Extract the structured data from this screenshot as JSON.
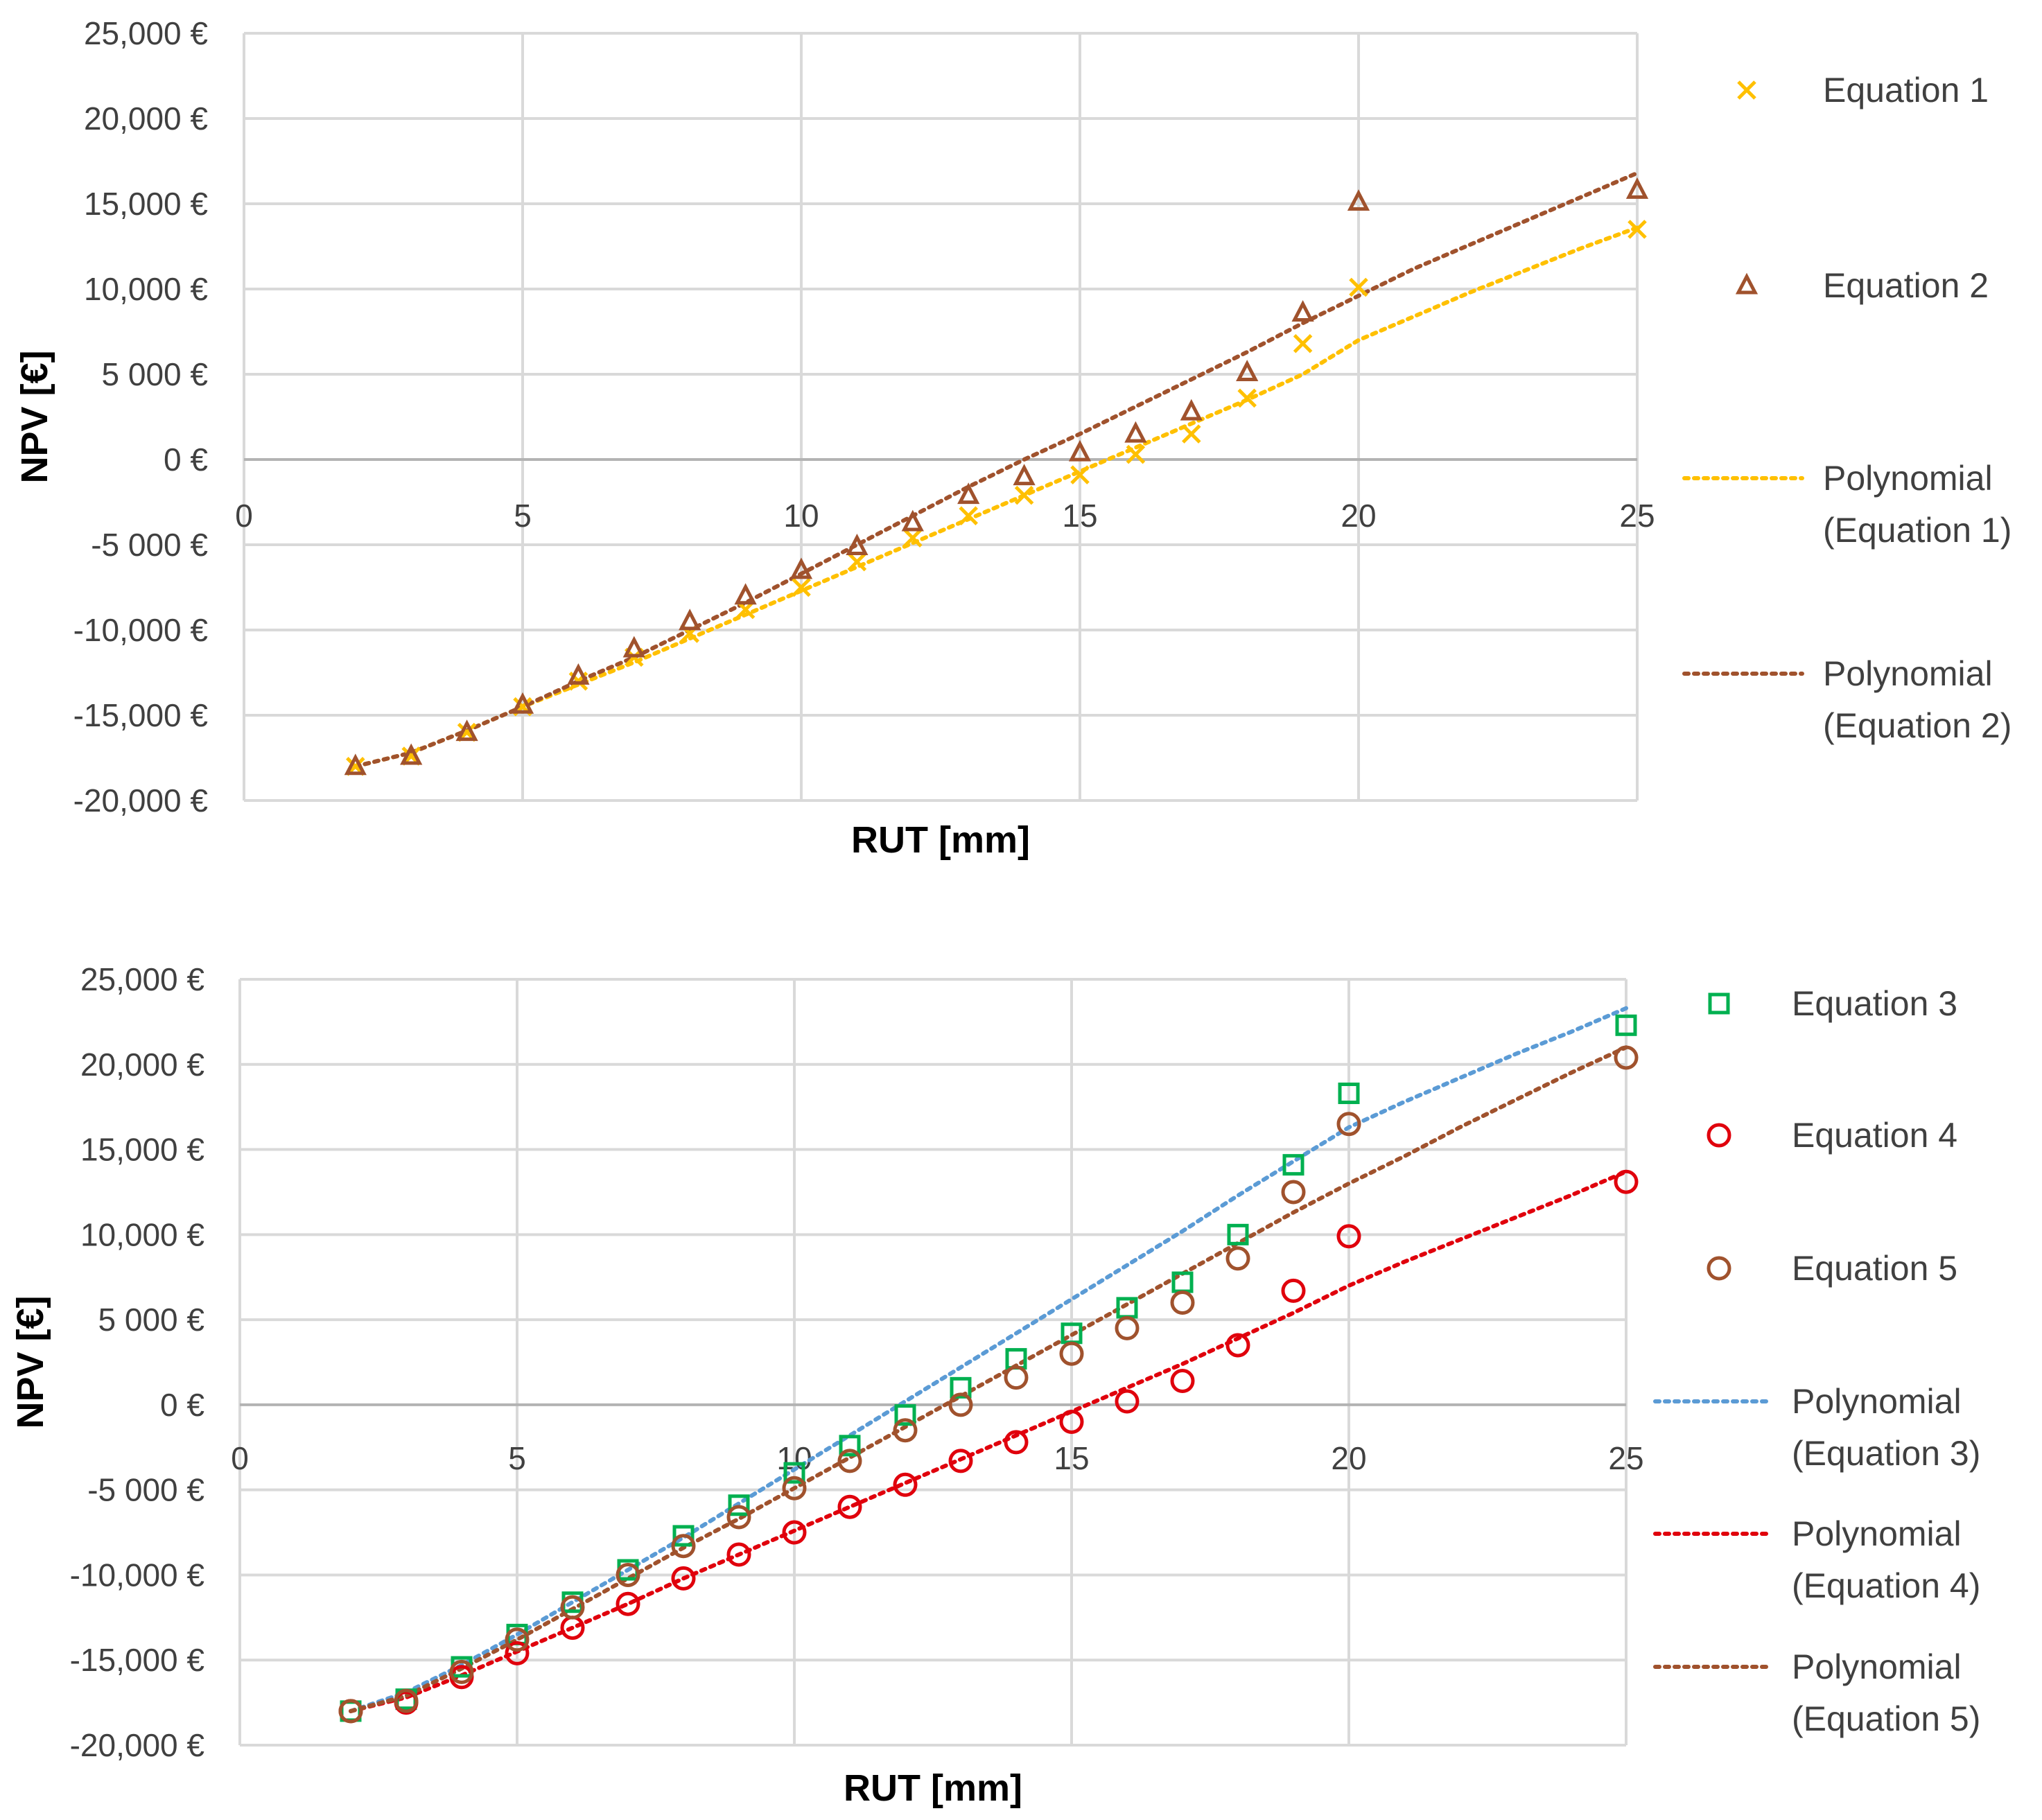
{
  "chart_data": [
    {
      "type": "scatter",
      "title": "",
      "xlabel": "RUT [mm]",
      "ylabel": "NPV [€]",
      "xlim": [
        0,
        25
      ],
      "ylim": [
        -20000,
        25000
      ],
      "grid": true,
      "legend_position": "right",
      "x_ticks": [
        "0",
        "5",
        "10",
        "15",
        "20",
        "25"
      ],
      "y_ticks": [
        "25,000 €",
        "20,000 €",
        "15,000 €",
        "10,000 €",
        "5 000 €",
        "0 €",
        "-5 000 €",
        "-10,000 €",
        "-15,000 €",
        "-20,000 €"
      ],
      "series": [
        {
          "name": "Equation 1",
          "marker": "x",
          "color": "#FFC000",
          "x": [
            2,
            3,
            4,
            5,
            6,
            7,
            8,
            9,
            10,
            11,
            12,
            13,
            14,
            15,
            16,
            17,
            18,
            19,
            20,
            25
          ],
          "values": [
            -18000,
            -17400,
            -16000,
            -14500,
            -13000,
            -11600,
            -10200,
            -8800,
            -7500,
            -6000,
            -4600,
            -3300,
            -2100,
            -900,
            300,
            1500,
            3600,
            6800,
            10100,
            13500
          ]
        },
        {
          "name": "Equation 2",
          "marker": "triangle",
          "color": "#A0522D",
          "x": [
            2,
            3,
            4,
            5,
            6,
            7,
            8,
            9,
            10,
            11,
            12,
            13,
            14,
            15,
            16,
            17,
            18,
            19,
            20,
            25
          ],
          "values": [
            -18000,
            -17400,
            -16000,
            -14400,
            -12700,
            -11100,
            -9500,
            -8000,
            -6500,
            -5100,
            -3700,
            -2100,
            -1000,
            400,
            1500,
            2800,
            5100,
            8600,
            15100,
            15800
          ]
        }
      ],
      "trendlines": [
        {
          "name": "Polynomial\n(Equation 1)",
          "label_line1": "Polynomial",
          "label_line2": "(Equation 1)",
          "color": "#FFC000",
          "x": [
            2,
            3,
            4,
            5,
            6,
            7,
            8,
            9,
            10,
            11,
            12,
            13,
            14,
            15,
            16,
            17,
            18,
            19,
            20,
            21,
            22,
            23,
            24,
            25
          ],
          "values": [
            -18000,
            -17200,
            -15900,
            -14500,
            -13200,
            -11900,
            -10500,
            -9100,
            -7700,
            -6300,
            -4900,
            -3500,
            -2100,
            -700,
            700,
            2100,
            3500,
            5000,
            7000,
            8400,
            9800,
            11100,
            12400,
            13600
          ]
        },
        {
          "name": "Polynomial\n(Equation 2)",
          "label_line1": "Polynomial",
          "label_line2": "(Equation 2)",
          "color": "#A0522D",
          "x": [
            2,
            3,
            4,
            5,
            6,
            7,
            8,
            9,
            10,
            11,
            12,
            13,
            14,
            15,
            16,
            17,
            18,
            19,
            20,
            21,
            22,
            23,
            24,
            25
          ],
          "values": [
            -18000,
            -17200,
            -15900,
            -14500,
            -13000,
            -11600,
            -10000,
            -8400,
            -6700,
            -5000,
            -3300,
            -1600,
            0,
            1500,
            3100,
            4700,
            6300,
            8000,
            9600,
            11200,
            12600,
            14000,
            15400,
            16800
          ]
        }
      ]
    },
    {
      "type": "scatter",
      "title": "",
      "xlabel": "RUT [mm]",
      "ylabel": "NPV [€]",
      "xlim": [
        0,
        25
      ],
      "ylim": [
        -20000,
        25000
      ],
      "grid": true,
      "legend_position": "right",
      "x_ticks": [
        "0",
        "5",
        "10",
        "15",
        "20",
        "25"
      ],
      "y_ticks": [
        "25,000 €",
        "20,000 €",
        "15,000 €",
        "10,000 €",
        "5 000 €",
        "0 €",
        "-5 000 €",
        "-10,000 €",
        "-15,000 €",
        "-20,000 €"
      ],
      "series": [
        {
          "name": "Equation 3",
          "marker": "square",
          "color": "#00B050",
          "x": [
            2,
            3,
            4,
            5,
            6,
            7,
            8,
            9,
            10,
            11,
            12,
            13,
            14,
            15,
            16,
            17,
            18,
            19,
            20,
            25
          ],
          "values": [
            -18000,
            -17300,
            -15400,
            -13500,
            -11600,
            -9700,
            -7700,
            -5900,
            -4000,
            -2400,
            -600,
            1000,
            2700,
            4200,
            5700,
            7200,
            10000,
            14100,
            18300,
            22300
          ]
        },
        {
          "name": "Equation 4",
          "marker": "circle",
          "color": "#E0000C",
          "x": [
            2,
            3,
            4,
            5,
            6,
            7,
            8,
            9,
            10,
            11,
            12,
            13,
            14,
            15,
            16,
            17,
            18,
            19,
            20,
            25
          ],
          "values": [
            -18000,
            -17500,
            -16000,
            -14600,
            -13100,
            -11700,
            -10200,
            -8800,
            -7500,
            -6000,
            -4700,
            -3300,
            -2200,
            -1000,
            200,
            1400,
            3500,
            6700,
            9900,
            13100
          ]
        },
        {
          "name": "Equation 5",
          "marker": "circle",
          "color": "#A0522D",
          "x": [
            2,
            3,
            4,
            5,
            6,
            7,
            8,
            9,
            10,
            11,
            12,
            13,
            14,
            15,
            16,
            17,
            18,
            19,
            20,
            25
          ],
          "values": [
            -18000,
            -17400,
            -15700,
            -13800,
            -11900,
            -10000,
            -8300,
            -6600,
            -4900,
            -3300,
            -1500,
            0,
            1600,
            3000,
            4500,
            6000,
            8600,
            12500,
            16500,
            20400
          ]
        }
      ],
      "trendlines": [
        {
          "name": "Polynomial\n(Equation 3)",
          "label_line1": "Polynomial",
          "label_line2": "(Equation 3)",
          "color": "#5B9BD5",
          "x": [
            2,
            3,
            4,
            5,
            6,
            7,
            8,
            9,
            10,
            11,
            12,
            13,
            14,
            15,
            16,
            17,
            18,
            19,
            20,
            21,
            22,
            23,
            24,
            25
          ],
          "values": [
            -18000,
            -16900,
            -15300,
            -13500,
            -11600,
            -9700,
            -7800,
            -5800,
            -3800,
            -1800,
            200,
            2200,
            4200,
            6200,
            8200,
            10200,
            12300,
            14300,
            16300,
            17800,
            19200,
            20600,
            21900,
            23300
          ]
        },
        {
          "name": "Polynomial\n(Equation 4)",
          "label_line1": "Polynomial",
          "label_line2": "(Equation 4)",
          "color": "#E0000C",
          "x": [
            2,
            3,
            4,
            5,
            6,
            7,
            8,
            9,
            10,
            11,
            12,
            13,
            14,
            15,
            16,
            17,
            18,
            19,
            20,
            21,
            22,
            23,
            24,
            25
          ],
          "values": [
            -18000,
            -17200,
            -15900,
            -14500,
            -13100,
            -11700,
            -10200,
            -8800,
            -7400,
            -6000,
            -4600,
            -3200,
            -1800,
            -400,
            1000,
            2400,
            3900,
            5400,
            7000,
            8400,
            9700,
            11000,
            12300,
            13700
          ]
        },
        {
          "name": "Polynomial\n(Equation 5)",
          "label_line1": "Polynomial",
          "label_line2": "(Equation 5)",
          "color": "#A0522D",
          "x": [
            2,
            3,
            4,
            5,
            6,
            7,
            8,
            9,
            10,
            11,
            12,
            13,
            14,
            15,
            16,
            17,
            18,
            19,
            20,
            21,
            22,
            23,
            24,
            25
          ],
          "values": [
            -18000,
            -17100,
            -15500,
            -13800,
            -12000,
            -10200,
            -8400,
            -6700,
            -4900,
            -3100,
            -1300,
            500,
            2300,
            4100,
            5900,
            7700,
            9500,
            11300,
            13000,
            14600,
            16300,
            17900,
            19500,
            21000
          ]
        }
      ]
    }
  ]
}
